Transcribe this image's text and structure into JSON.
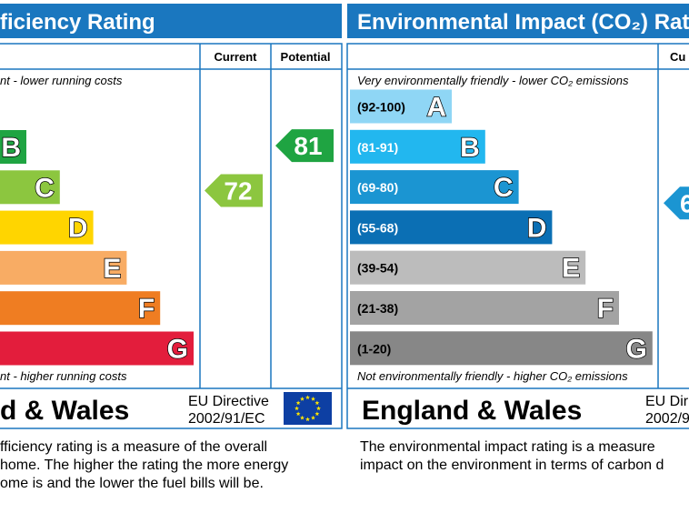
{
  "chart_data": [
    {
      "type": "bar",
      "title": "ficiency Rating",
      "columns": [
        "Current",
        "Potential"
      ],
      "top_note": "nt - lower running costs",
      "bottom_note": "nt - higher running costs",
      "bands": [
        {
          "letter": "B",
          "color": "#1fa442"
        },
        {
          "letter": "C",
          "color": "#8cc63f"
        },
        {
          "letter": "D",
          "color": "#ffd500"
        },
        {
          "letter": "E",
          "color": "#f8ac64"
        },
        {
          "letter": "F",
          "color": "#ef7d22"
        },
        {
          "letter": "G",
          "color": "#e31d3c"
        }
      ],
      "current": {
        "value": "72",
        "band": "C",
        "color": "#8cc63f"
      },
      "potential": {
        "value": "81",
        "band": "B",
        "color": "#1fa442"
      },
      "footer": {
        "region": "d & Wales",
        "directive_line1": "EU Directive",
        "directive_line2": "2002/91/EC"
      },
      "description": [
        "fficiency rating is a measure of the overall",
        "home.  The higher the rating the more energy",
        "ome is and the lower the fuel bills will be."
      ]
    },
    {
      "type": "bar",
      "title": "Environmental Impact (CO₂) Rat",
      "columns": [
        "Cu"
      ],
      "top_note": "Very environmentally friendly - lower CO₂ emissions",
      "bottom_note": "Not environmentally friendly - higher CO₂ emissions",
      "bands": [
        {
          "range": "(92-100)",
          "letter": "A",
          "color": "#8fd6f5"
        },
        {
          "range": "(81-91)",
          "letter": "B",
          "color": "#22b7ef"
        },
        {
          "range": "(69-80)",
          "letter": "C",
          "color": "#1b95d2"
        },
        {
          "range": "(55-68)",
          "letter": "D",
          "color": "#0b6fb4"
        },
        {
          "range": "(39-54)",
          "letter": "E",
          "color": "#bcbcbc"
        },
        {
          "range": "(21-38)",
          "letter": "F",
          "color": "#a3a3a3"
        },
        {
          "range": "(1-20)",
          "letter": "G",
          "color": "#878787"
        }
      ],
      "current": {
        "value": "6",
        "band": "C",
        "color": "#1b95d2"
      },
      "footer": {
        "region": "England & Wales",
        "directive_line1": "EU Dir",
        "directive_line2": "2002/9"
      },
      "description": [
        "The environmental impact rating is a measure",
        "impact on the environment in terms of carbon d"
      ]
    }
  ],
  "colors": {
    "header": "#1a77bf",
    "border": "#1a77bf",
    "eu_flag": "#0d3fa3",
    "eu_stars": "#ffe600"
  },
  "icons": {
    "eu_flag": "eu-flag-icon"
  }
}
